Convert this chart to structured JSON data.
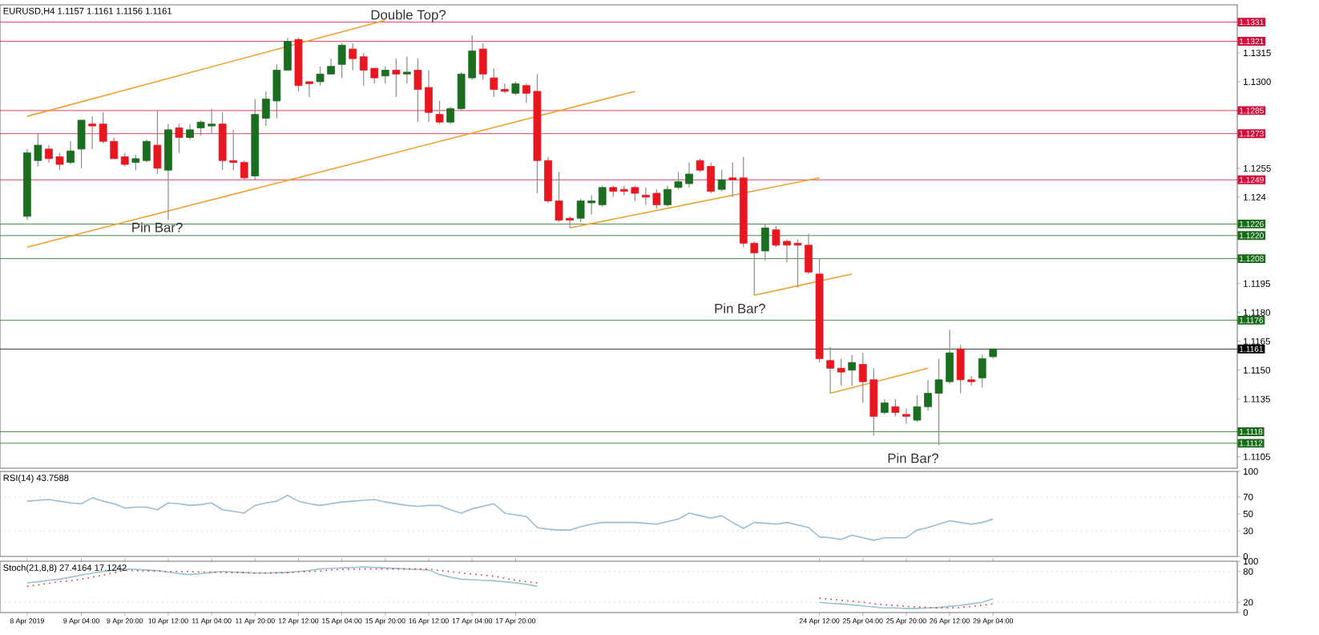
{
  "chart_data": [
    {
      "type": "candlestick",
      "title": "EURUSD,H4  1.1157 1.1161 1.1156 1.1161",
      "ohlc": [
        [
          1.123,
          1.1265,
          1.1228,
          1.1263
        ],
        [
          1.1259,
          1.1273,
          1.1256,
          1.1267
        ],
        [
          1.1265,
          1.1267,
          1.1258,
          1.126
        ],
        [
          1.1261,
          1.1263,
          1.1254,
          1.1257
        ],
        [
          1.1258,
          1.1269,
          1.1257,
          1.1264
        ],
        [
          1.1265,
          1.128,
          1.1255,
          1.128
        ],
        [
          1.1278,
          1.1282,
          1.1265,
          1.1277
        ],
        [
          1.1278,
          1.1284,
          1.1268,
          1.1269
        ],
        [
          1.1269,
          1.1271,
          1.126,
          1.126
        ],
        [
          1.1261,
          1.1263,
          1.1256,
          1.1257
        ],
        [
          1.1258,
          1.1262,
          1.1254,
          1.126
        ],
        [
          1.1259,
          1.127,
          1.1258,
          1.1269
        ],
        [
          1.1267,
          1.1285,
          1.1252,
          1.1255
        ],
        [
          1.1254,
          1.1278,
          1.1228,
          1.1275
        ],
        [
          1.1276,
          1.1278,
          1.1263,
          1.1271
        ],
        [
          1.1271,
          1.1278,
          1.127,
          1.1275
        ],
        [
          1.1276,
          1.128,
          1.1272,
          1.1279
        ],
        [
          1.1277,
          1.1286,
          1.1273,
          1.1278
        ],
        [
          1.1278,
          1.1284,
          1.1254,
          1.1259
        ],
        [
          1.1259,
          1.1275,
          1.1254,
          1.1258
        ],
        [
          1.1258,
          1.1259,
          1.1249,
          1.125
        ],
        [
          1.1251,
          1.1291,
          1.1249,
          1.1283
        ],
        [
          1.1281,
          1.1295,
          1.1277,
          1.1291
        ],
        [
          1.129,
          1.1309,
          1.1281,
          1.1306
        ],
        [
          1.1306,
          1.1323,
          1.1306,
          1.1321
        ],
        [
          1.1322,
          1.1323,
          1.1295,
          1.1298
        ],
        [
          1.13,
          1.13,
          1.1292,
          1.1299
        ],
        [
          1.13,
          1.1308,
          1.1298,
          1.1304
        ],
        [
          1.1304,
          1.1312,
          1.1304,
          1.1308
        ],
        [
          1.1309,
          1.132,
          1.1302,
          1.1319
        ],
        [
          1.1317,
          1.132,
          1.1306,
          1.1312
        ],
        [
          1.1313,
          1.1315,
          1.1298,
          1.1306
        ],
        [
          1.1307,
          1.1307,
          1.1299,
          1.1302
        ],
        [
          1.1303,
          1.1308,
          1.1299,
          1.1306
        ],
        [
          1.1306,
          1.1312,
          1.1292,
          1.1304
        ],
        [
          1.1304,
          1.1313,
          1.1299,
          1.1305
        ],
        [
          1.1306,
          1.1312,
          1.1279,
          1.1296
        ],
        [
          1.1297,
          1.1306,
          1.1279,
          1.1284
        ],
        [
          1.1283,
          1.129,
          1.1278,
          1.1279
        ],
        [
          1.1279,
          1.1287,
          1.1278,
          1.1286
        ],
        [
          1.1286,
          1.1305,
          1.1285,
          1.1304
        ],
        [
          1.1302,
          1.1324,
          1.1301,
          1.1316
        ],
        [
          1.1317,
          1.132,
          1.1301,
          1.1304
        ],
        [
          1.1302,
          1.1307,
          1.1292,
          1.1296
        ],
        [
          1.1296,
          1.1299,
          1.1294,
          1.1295
        ],
        [
          1.1294,
          1.13,
          1.1293,
          1.1299
        ],
        [
          1.1298,
          1.1299,
          1.1289,
          1.1294
        ],
        [
          1.1295,
          1.1304,
          1.1242,
          1.1259
        ],
        [
          1.1259,
          1.1261,
          1.1237,
          1.1238
        ],
        [
          1.1238,
          1.1253,
          1.1227,
          1.1228
        ],
        [
          1.1229,
          1.123,
          1.1224,
          1.1228
        ],
        [
          1.1229,
          1.1239,
          1.1227,
          1.1238
        ],
        [
          1.1237,
          1.1241,
          1.1231,
          1.1238
        ],
        [
          1.1236,
          1.1246,
          1.1235,
          1.1245
        ],
        [
          1.1245,
          1.1246,
          1.124,
          1.1243
        ],
        [
          1.1244,
          1.1246,
          1.1241,
          1.1243
        ],
        [
          1.1245,
          1.1246,
          1.1238,
          1.1242
        ],
        [
          1.1241,
          1.1245,
          1.1236,
          1.124
        ],
        [
          1.1242,
          1.1244,
          1.1234,
          1.1236
        ],
        [
          1.1236,
          1.1246,
          1.1235,
          1.1244
        ],
        [
          1.1245,
          1.1253,
          1.1244,
          1.1248
        ],
        [
          1.1247,
          1.1258,
          1.1245,
          1.1252
        ],
        [
          1.1259,
          1.126,
          1.1253,
          1.1254
        ],
        [
          1.1256,
          1.1258,
          1.1242,
          1.1243
        ],
        [
          1.1244,
          1.1254,
          1.1243,
          1.1249
        ],
        [
          1.125,
          1.1258,
          1.124,
          1.1249
        ],
        [
          1.125,
          1.1261,
          1.1214,
          1.1216
        ],
        [
          1.1216,
          1.1217,
          1.1189,
          1.1211
        ],
        [
          1.1212,
          1.1226,
          1.1207,
          1.1224
        ],
        [
          1.1223,
          1.1225,
          1.1214,
          1.1215
        ],
        [
          1.1217,
          1.1218,
          1.1206,
          1.1215
        ],
        [
          1.1216,
          1.1218,
          1.1193,
          1.1215
        ],
        [
          1.1215,
          1.1221,
          1.12,
          1.1201
        ],
        [
          1.12,
          1.1208,
          1.1154,
          1.1156
        ],
        [
          1.1155,
          1.1162,
          1.1138,
          1.1151
        ],
        [
          1.1151,
          1.1156,
          1.1142,
          1.1149
        ],
        [
          1.115,
          1.1158,
          1.1142,
          1.1154
        ],
        [
          1.1153,
          1.1159,
          1.1133,
          1.1144
        ],
        [
          1.1145,
          1.1151,
          1.1116,
          1.1126
        ],
        [
          1.1128,
          1.1135,
          1.1127,
          1.1133
        ],
        [
          1.1131,
          1.1135,
          1.1126,
          1.1128
        ],
        [
          1.1127,
          1.113,
          1.1122,
          1.1126
        ],
        [
          1.1124,
          1.1137,
          1.1123,
          1.1131
        ],
        [
          1.1131,
          1.1145,
          1.1129,
          1.1138
        ],
        [
          1.1138,
          1.1156,
          1.1111,
          1.1145
        ],
        [
          1.1144,
          1.1171,
          1.1143,
          1.1159
        ],
        [
          1.1161,
          1.1163,
          1.1138,
          1.1145
        ],
        [
          1.1145,
          1.1147,
          1.1142,
          1.1144
        ],
        [
          1.1146,
          1.1158,
          1.1141,
          1.1156
        ],
        [
          1.1157,
          1.1161,
          1.1156,
          1.1161
        ],
        null,
        null,
        null,
        null,
        null,
        null,
        null,
        null,
        null,
        null,
        null,
        null,
        null,
        null,
        null,
        null,
        null,
        null,
        null,
        null,
        null,
        null
      ],
      "colors": [
        "#1b6e20",
        "#1b6e20",
        "#e8171f",
        "#e8171f",
        "#1b6e20",
        "#1b6e20",
        "#e8171f",
        "#e8171f",
        "#e8171f",
        "#e8171f",
        "#1b6e20",
        "#1b6e20",
        "#e8171f",
        "#1b6e20",
        "#e8171f",
        "#1b6e20",
        "#1b6e20",
        "#1b6e20",
        "#e8171f",
        "#e8171f",
        "#e8171f",
        "#1b6e20",
        "#1b6e20",
        "#1b6e20",
        "#1b6e20",
        "#e8171f",
        "#e8171f",
        "#1b6e20",
        "#1b6e20",
        "#1b6e20",
        "#e8171f",
        "#e8171f",
        "#e8171f",
        "#1b6e20",
        "#e8171f",
        "#1b6e20",
        "#e8171f",
        "#e8171f",
        "#e8171f",
        "#1b6e20",
        "#1b6e20",
        "#1b6e20",
        "#e8171f",
        "#e8171f",
        "#e8171f",
        "#1b6e20",
        "#e8171f",
        "#e8171f",
        "#e8171f",
        "#e8171f",
        "#e8171f",
        "#1b6e20",
        "#1b6e20",
        "#1b6e20",
        "#e8171f",
        "#e8171f",
        "#e8171f",
        "#e8171f",
        "#e8171f",
        "#1b6e20",
        "#1b6e20",
        "#1b6e20",
        "#e8171f",
        "#e8171f",
        "#1b6e20",
        "#e8171f",
        "#e8171f",
        "#e8171f",
        "#1b6e20",
        "#e8171f",
        "#e8171f",
        "#e8171f",
        "#e8171f",
        "#e8171f",
        "#e8171f",
        "#e8171f",
        "#1b6e20",
        "#e8171f",
        "#e8171f",
        "#1b6e20",
        "#e8171f",
        "#e8171f",
        "#1b6e20",
        "#1b6e20",
        "#1b6e20",
        "#1b6e20",
        "#e8171f",
        "#e8171f",
        "#1b6e20",
        "#1b6e20",
        null,
        null,
        null,
        null,
        null,
        null,
        null,
        null,
        null,
        null,
        null,
        null,
        null,
        null,
        null,
        null,
        null,
        null,
        null,
        null,
        null,
        null
      ],
      "series": [
        {
          "type": "line",
          "color": "#f0a030",
          "values": [
            1.1282,
            null,
            null,
            null,
            null,
            null,
            null,
            null,
            null,
            null,
            null,
            null,
            null,
            null,
            null,
            null,
            null,
            null,
            null,
            null,
            null,
            null,
            null,
            null,
            null,
            null,
            null,
            null,
            null,
            null,
            null,
            null,
            null,
            1.1332,
            null,
            null,
            null,
            null,
            null,
            null,
            null,
            null,
            null,
            null,
            null,
            null,
            null,
            null,
            null,
            null,
            null,
            null,
            null,
            null,
            null,
            null,
            null,
            null,
            null,
            null,
            null,
            null,
            null,
            null,
            null,
            null,
            null,
            null,
            null,
            null,
            null,
            null,
            null,
            null,
            null,
            null,
            null,
            null,
            null,
            null,
            null,
            null,
            null,
            null,
            null,
            null,
            null,
            null,
            null,
            null,
            null,
            null,
            null,
            null,
            null,
            null,
            null,
            null,
            null,
            null,
            null,
            null,
            null,
            null,
            null,
            null,
            null,
            null,
            null,
            null,
            null,
            null
          ]
        },
        {
          "type": "line",
          "color": "#f0a030",
          "values": [
            1.1214,
            null,
            null,
            null,
            null,
            null,
            null,
            null,
            null,
            null,
            null,
            null,
            null,
            null,
            null,
            null,
            null,
            null,
            null,
            null,
            null,
            null,
            null,
            null,
            null,
            null,
            null,
            null,
            null,
            null,
            null,
            null,
            null,
            null,
            null,
            null,
            null,
            null,
            null,
            null,
            null,
            null,
            null,
            null,
            null,
            null,
            null,
            null,
            null,
            null,
            null,
            null,
            null,
            null,
            null,
            null,
            1.1295,
            null,
            null,
            null,
            null,
            null,
            null,
            null,
            null,
            null,
            null,
            null,
            null,
            null,
            null,
            null,
            null,
            null,
            null,
            null,
            null,
            null,
            null,
            null,
            null,
            null,
            null,
            null,
            null,
            null,
            null,
            null,
            null,
            null,
            null,
            null,
            null,
            null,
            null,
            null,
            null,
            null,
            null,
            null,
            null,
            null,
            null,
            null,
            null,
            null,
            null,
            null,
            null,
            null,
            null,
            null
          ]
        },
        {
          "type": "line",
          "color": "#f0a030",
          "values": [
            null,
            null,
            null,
            null,
            null,
            null,
            null,
            null,
            null,
            null,
            null,
            null,
            null,
            null,
            null,
            null,
            null,
            null,
            null,
            null,
            null,
            null,
            null,
            null,
            null,
            null,
            null,
            null,
            null,
            null,
            null,
            null,
            null,
            null,
            null,
            null,
            null,
            null,
            null,
            null,
            null,
            null,
            null,
            null,
            null,
            null,
            null,
            null,
            null,
            null,
            1.1224,
            null,
            null,
            null,
            null,
            null,
            null,
            null,
            null,
            null,
            null,
            null,
            null,
            null,
            null,
            null,
            null,
            null,
            null,
            null,
            null,
            null,
            null,
            1.125,
            null,
            null,
            null,
            null,
            null,
            null,
            null,
            null,
            null,
            null,
            null,
            null,
            null,
            null,
            null,
            null,
            null,
            null,
            null,
            null,
            null,
            null,
            null,
            null,
            null,
            null,
            null,
            null,
            null,
            null,
            null,
            null,
            null,
            null,
            null,
            null,
            null,
            null
          ]
        },
        {
          "type": "line",
          "color": "#f0a030",
          "values": [
            null,
            null,
            null,
            null,
            null,
            null,
            null,
            null,
            null,
            null,
            null,
            null,
            null,
            null,
            null,
            null,
            null,
            null,
            null,
            null,
            null,
            null,
            null,
            null,
            null,
            null,
            null,
            null,
            null,
            null,
            null,
            null,
            null,
            null,
            null,
            null,
            null,
            null,
            null,
            null,
            null,
            null,
            null,
            null,
            null,
            null,
            null,
            null,
            null,
            null,
            null,
            null,
            null,
            null,
            null,
            null,
            null,
            null,
            null,
            null,
            null,
            null,
            null,
            null,
            null,
            null,
            null,
            1.1189,
            null,
            null,
            null,
            null,
            null,
            null,
            null,
            null,
            1.12,
            null,
            null,
            null,
            null,
            null,
            null,
            null,
            null,
            null,
            null,
            null,
            null,
            null,
            null,
            null,
            null,
            null,
            null,
            null,
            null,
            null,
            null,
            null,
            null,
            null,
            null,
            null,
            null,
            null,
            null,
            null,
            null,
            null,
            null,
            null
          ]
        },
        {
          "type": "line",
          "color": "#f0a030",
          "values": [
            null,
            null,
            null,
            null,
            null,
            null,
            null,
            null,
            null,
            null,
            null,
            null,
            null,
            null,
            null,
            null,
            null,
            null,
            null,
            null,
            null,
            null,
            null,
            null,
            null,
            null,
            null,
            null,
            null,
            null,
            null,
            null,
            null,
            null,
            null,
            null,
            null,
            null,
            null,
            null,
            null,
            null,
            null,
            null,
            null,
            null,
            null,
            null,
            null,
            null,
            null,
            null,
            null,
            null,
            null,
            null,
            null,
            null,
            null,
            null,
            null,
            null,
            null,
            null,
            null,
            null,
            null,
            null,
            null,
            null,
            null,
            null,
            null,
            null,
            1.1138,
            null,
            null,
            null,
            null,
            null,
            null,
            null,
            null,
            1.1151,
            null,
            null,
            null,
            null,
            null,
            null,
            null,
            null,
            null,
            null,
            null,
            null,
            null,
            null,
            null,
            null,
            null,
            null,
            null,
            null,
            null,
            null,
            null,
            null,
            null,
            null,
            null,
            null
          ]
        }
      ],
      "ref_lines": [
        {
          "axis": "y",
          "value": 1.1331,
          "label": "1.1331",
          "color": "#d0103a"
        },
        {
          "axis": "y",
          "value": 1.1321,
          "label": "1.1321",
          "color": "#d0103a"
        },
        {
          "axis": "y",
          "value": 1.1285,
          "label": "1.1285",
          "color": "#d0103a"
        },
        {
          "axis": "y",
          "value": 1.1273,
          "label": "1.1273",
          "color": "#d0103a"
        },
        {
          "axis": "y",
          "value": 1.1249,
          "label": "1.1249",
          "color": "#d0103a"
        },
        {
          "axis": "y",
          "value": 1.1226,
          "label": "1.1226",
          "color": "#1a6b1a"
        },
        {
          "axis": "y",
          "value": 1.122,
          "label": "1.1220",
          "color": "#1a6b1a"
        },
        {
          "axis": "y",
          "value": 1.1208,
          "label": "1.1208",
          "color": "#1a6b1a"
        },
        {
          "axis": "y",
          "value": 1.1176,
          "label": "1.1176",
          "color": "#1a6b1a"
        },
        {
          "axis": "y",
          "value": 1.1161,
          "label": "1.1161",
          "color": "#000000"
        },
        {
          "axis": "y",
          "value": 1.1118,
          "label": "1.1118",
          "color": "#1a6b1a"
        },
        {
          "axis": "y",
          "value": 1.1112,
          "label": "1.1112",
          "color": "#1a6b1a"
        }
      ],
      "annotations": [
        "Double Top?",
        "Pin Bar?",
        "Pin Bar?",
        "Pin Bar?"
      ],
      "ylim": [
        1.1099,
        1.134
      ],
      "yticks": [
        1.1105,
        1.1135,
        {
          "value": 1.115,
          "label": "1.1150"
        },
        1.1165,
        {
          "value": 1.118,
          "label": "1.1180"
        },
        1.1195,
        1.124,
        1.1255,
        {
          "value": 1.13,
          "label": "1.1300"
        },
        1.1315
      ],
      "tick_labels": "y"
    },
    {
      "type": "line",
      "title": "RSI(14) 43.7588",
      "series": [
        {
          "color": "#9dbcd4",
          "values": [
            65,
            66,
            67,
            65,
            63,
            62,
            69,
            65,
            62,
            57,
            58,
            58,
            55,
            63,
            62,
            60,
            61,
            63,
            55,
            53,
            51,
            60,
            63,
            65,
            72,
            65,
            62,
            60,
            62,
            64,
            65,
            66,
            67,
            64,
            62,
            60,
            59,
            60,
            60,
            55,
            51,
            56,
            59,
            62,
            51,
            49,
            47,
            34,
            32,
            31,
            31,
            35,
            38,
            40,
            40,
            40,
            40,
            39,
            38,
            41,
            44,
            51,
            48,
            45,
            48,
            40,
            33,
            40,
            39,
            38,
            40,
            37,
            34,
            23,
            22,
            20,
            25,
            22,
            19,
            22,
            22,
            22,
            31,
            34,
            38,
            42,
            40,
            38,
            40,
            44,
            null,
            null,
            null,
            null,
            null,
            null,
            null,
            null,
            null,
            null,
            null,
            null,
            null,
            null,
            null,
            null,
            null,
            null,
            null,
            null,
            null,
            null
          ]
        }
      ],
      "ref_lines": [
        {
          "axis": "y",
          "value": 70,
          "color": "#a0a0a0",
          "line_style": "dotted"
        },
        {
          "axis": "y",
          "value": 30,
          "color": "#a0a0a0",
          "line_style": "dotted"
        }
      ],
      "ylim": [
        0,
        100
      ],
      "yticks": [
        0,
        30,
        50,
        70,
        100
      ],
      "tick_labels": "y"
    },
    {
      "type": "line",
      "title": "Stoch(21,8,8) 27.4164 17.1242",
      "categories": [
        "8 Apr 2019",
        null,
        null,
        null,
        null,
        "9 Apr 04:00",
        null,
        null,
        null,
        "9 Apr 20:00",
        null,
        null,
        null,
        "10 Apr 12:00",
        null,
        null,
        null,
        "11 Apr 04:00",
        null,
        null,
        null,
        "11 Apr 20:00",
        null,
        null,
        null,
        "12 Apr 12:00",
        null,
        null,
        null,
        "15 Apr 04:00",
        null,
        null,
        null,
        "15 Apr 20:00",
        null,
        null,
        null,
        "16 Apr 12:00",
        null,
        null,
        null,
        "17 Apr 04:00",
        null,
        null,
        null,
        "17 Apr 20:00",
        null,
        null,
        null,
        null,
        null,
        null,
        null,
        null,
        null,
        null,
        null,
        null,
        null,
        null,
        null,
        null,
        null,
        null,
        null,
        null,
        null,
        null,
        null,
        null,
        null,
        null,
        null,
        "24 Apr 12:00",
        null,
        null,
        null,
        "25 Apr 04:00",
        null,
        null,
        null,
        "25 Apr 20:00",
        null,
        null,
        null,
        "26 Apr 12:00",
        null,
        null,
        null,
        "29 Apr 04:00",
        null,
        null,
        null,
        null,
        null,
        null,
        null,
        null,
        null,
        null,
        null,
        null,
        null,
        null,
        null,
        null,
        null,
        null,
        null,
        null,
        null,
        null
      ],
      "series": [
        {
          "color": "#9dc3cf",
          "values": [
            58,
            60,
            63,
            65,
            69,
            73,
            77,
            80,
            83,
            85,
            84,
            83,
            82,
            79,
            76,
            74,
            76,
            78,
            80,
            79,
            78,
            77,
            77,
            78,
            78,
            80,
            82,
            85,
            86,
            87,
            88,
            89,
            88,
            87,
            86,
            85,
            84,
            83,
            74,
            69,
            65,
            64,
            63,
            62,
            60,
            58,
            55,
            51,
            null,
            null,
            null,
            null,
            null,
            null,
            null,
            null,
            null,
            null,
            null,
            null,
            null,
            null,
            null,
            null,
            null,
            null,
            null,
            null,
            null,
            null,
            null,
            null,
            null,
            null,
            null,
            null,
            null,
            null,
            null,
            null,
            null,
            null,
            null,
            null,
            null,
            null,
            null,
            null,
            null,
            null,
            null,
            null,
            null,
            null,
            null,
            null,
            null,
            null,
            null,
            null,
            null,
            null,
            null,
            null,
            null,
            null,
            null,
            null,
            null,
            null,
            null,
            null
          ]
        },
        {
          "color": "#9dc3cf",
          "values": [
            null,
            null,
            null,
            null,
            null,
            null,
            null,
            null,
            null,
            null,
            null,
            null,
            null,
            null,
            null,
            null,
            null,
            null,
            null,
            null,
            null,
            null,
            null,
            null,
            null,
            null,
            null,
            null,
            null,
            null,
            null,
            null,
            null,
            null,
            null,
            null,
            null,
            null,
            null,
            null,
            null,
            null,
            null,
            null,
            null,
            null,
            null,
            null,
            null,
            null,
            null,
            null,
            null,
            null,
            null,
            null,
            null,
            null,
            null,
            null,
            null,
            null,
            null,
            null,
            null,
            null,
            null,
            null,
            null,
            null,
            null,
            null,
            null,
            20,
            18,
            17,
            15,
            13,
            11,
            9,
            9,
            8,
            8,
            9,
            10,
            12,
            14,
            17,
            20,
            27,
            null,
            null,
            null,
            null,
            null,
            null,
            null,
            null,
            null,
            null,
            null,
            null,
            null,
            null,
            null,
            null,
            null,
            null,
            null,
            null,
            null,
            null
          ]
        },
        {
          "color": "#e03030",
          "line_style": "dotted",
          "values": [
            51,
            54,
            57,
            60,
            62,
            65,
            69,
            73,
            78,
            82,
            82,
            81,
            81,
            80,
            80,
            80,
            79,
            79,
            78,
            78,
            78,
            77,
            77,
            77,
            78,
            79,
            80,
            81,
            83,
            84,
            85,
            85,
            85,
            85,
            85,
            85,
            85,
            85,
            82,
            80,
            77,
            75,
            73,
            71,
            67,
            63,
            60,
            58,
            null,
            null,
            null,
            null,
            null,
            null,
            null,
            null,
            null,
            null,
            null,
            null,
            null,
            null,
            null,
            null,
            null,
            null,
            null,
            null,
            null,
            null,
            null,
            null,
            null,
            null,
            null,
            null,
            null,
            null,
            null,
            null,
            null,
            null,
            null,
            null,
            null,
            null,
            null,
            null,
            null,
            null,
            null,
            null,
            null,
            null,
            null,
            null,
            null,
            null,
            null,
            null,
            null,
            null,
            null,
            null,
            null,
            null,
            null,
            null,
            null,
            null,
            null,
            null
          ]
        },
        {
          "color": "#e03030",
          "line_style": "dotted",
          "values": [
            null,
            null,
            null,
            null,
            null,
            null,
            null,
            null,
            null,
            null,
            null,
            null,
            null,
            null,
            null,
            null,
            null,
            null,
            null,
            null,
            null,
            null,
            null,
            null,
            null,
            null,
            null,
            null,
            null,
            null,
            null,
            null,
            null,
            null,
            null,
            null,
            null,
            null,
            null,
            null,
            null,
            null,
            null,
            null,
            null,
            null,
            null,
            null,
            null,
            null,
            null,
            null,
            null,
            null,
            null,
            null,
            null,
            null,
            null,
            null,
            null,
            null,
            null,
            null,
            null,
            null,
            null,
            null,
            null,
            null,
            null,
            null,
            null,
            28,
            26,
            24,
            22,
            20,
            17,
            15,
            14,
            12,
            11,
            10,
            9,
            9,
            10,
            12,
            14,
            17,
            null,
            null,
            null,
            null,
            null,
            null,
            null,
            null,
            null,
            null,
            null,
            null,
            null,
            null,
            null,
            null,
            null,
            null,
            null,
            null,
            null,
            null
          ]
        }
      ],
      "ref_lines": [
        {
          "axis": "y",
          "value": 80,
          "color": "#a0a0a0",
          "line_style": "dotted"
        },
        {
          "axis": "y",
          "value": 20,
          "color": "#a0a0a0",
          "line_style": "dotted"
        }
      ],
      "ylim": [
        0,
        100
      ],
      "yticks": [
        0,
        20,
        80,
        100
      ]
    }
  ]
}
